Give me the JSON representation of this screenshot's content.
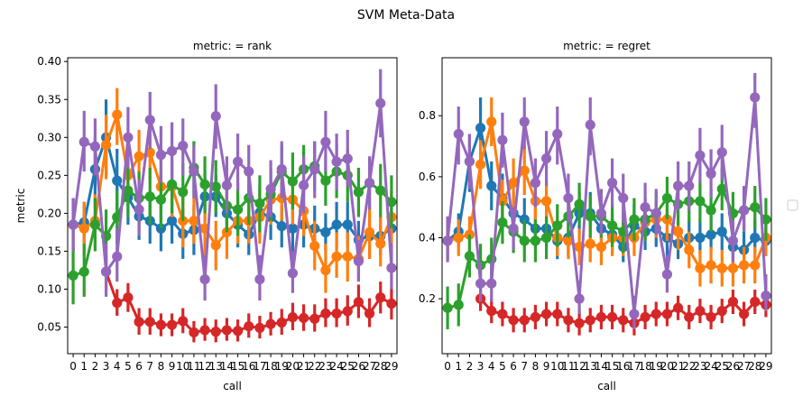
{
  "figure": {
    "title": "SVM Meta-Data"
  },
  "legend": {
    "entries": [],
    "placement": "center-right"
  },
  "chart_data": [
    {
      "type": "line",
      "title": "metric:  = rank",
      "xlabel": "call",
      "ylabel": "metric",
      "categories": [
        "0",
        "1",
        "2",
        "3",
        "4",
        "5",
        "6",
        "7",
        "8",
        "9",
        "10",
        "11",
        "12",
        "13",
        "14",
        "15",
        "16",
        "17",
        "18",
        "19",
        "20",
        "21",
        "22",
        "23",
        "24",
        "25",
        "26",
        "27",
        "28",
        "29"
      ],
      "ylim": [
        0.015,
        0.405
      ],
      "yticks": [
        0.05,
        0.1,
        0.15,
        0.2,
        0.25,
        0.3,
        0.35,
        0.4
      ],
      "ytick_labels": [
        "0.05",
        "0.10",
        "0.15",
        "0.20",
        "0.25",
        "0.30",
        "0.35",
        "0.40"
      ],
      "series": [
        {
          "color": "#1f77b4",
          "values": [
            0.185,
            0.188,
            0.258,
            0.3,
            0.243,
            0.221,
            0.196,
            0.19,
            0.18,
            0.19,
            0.173,
            0.178,
            0.222,
            0.222,
            0.2,
            0.185,
            0.172,
            0.201,
            0.195,
            0.183,
            0.18,
            0.185,
            0.18,
            0.175,
            0.185,
            0.185,
            0.165,
            0.17,
            0.17,
            0.18
          ],
          "lo": [
            0.15,
            0.16,
            0.21,
            0.25,
            0.205,
            0.185,
            0.165,
            0.16,
            0.15,
            0.16,
            0.14,
            0.145,
            0.19,
            0.195,
            0.17,
            0.155,
            0.145,
            0.17,
            0.165,
            0.155,
            0.15,
            0.155,
            0.15,
            0.15,
            0.155,
            0.155,
            0.14,
            0.14,
            0.145,
            0.15
          ],
          "hi": [
            0.22,
            0.215,
            0.3,
            0.35,
            0.285,
            0.26,
            0.23,
            0.22,
            0.21,
            0.225,
            0.205,
            0.21,
            0.255,
            0.25,
            0.23,
            0.215,
            0.2,
            0.235,
            0.225,
            0.21,
            0.21,
            0.215,
            0.21,
            0.2,
            0.215,
            0.215,
            0.19,
            0.2,
            0.195,
            0.21
          ]
        },
        {
          "color": "#ff7f0e",
          "values": [
            0.185,
            0.18,
            0.19,
            0.29,
            0.33,
            0.25,
            0.275,
            0.28,
            0.235,
            0.235,
            0.19,
            0.19,
            0.18,
            0.158,
            0.175,
            0.19,
            0.19,
            0.195,
            0.218,
            0.22,
            0.218,
            0.203,
            0.157,
            0.125,
            0.143,
            0.143,
            0.14,
            0.175,
            0.16,
            0.195
          ],
          "lo": [
            0.15,
            0.145,
            0.155,
            0.245,
            0.29,
            0.21,
            0.24,
            0.245,
            0.2,
            0.195,
            0.155,
            0.16,
            0.145,
            0.125,
            0.14,
            0.16,
            0.16,
            0.16,
            0.185,
            0.19,
            0.185,
            0.17,
            0.125,
            0.095,
            0.115,
            0.11,
            0.11,
            0.14,
            0.13,
            0.16
          ],
          "hi": [
            0.22,
            0.215,
            0.225,
            0.33,
            0.365,
            0.29,
            0.31,
            0.315,
            0.27,
            0.27,
            0.225,
            0.225,
            0.215,
            0.19,
            0.21,
            0.225,
            0.225,
            0.23,
            0.255,
            0.255,
            0.25,
            0.235,
            0.19,
            0.16,
            0.175,
            0.175,
            0.17,
            0.21,
            0.195,
            0.23
          ]
        },
        {
          "color": "#2ca02c",
          "values": [
            0.118,
            0.123,
            0.185,
            0.17,
            0.195,
            0.23,
            0.22,
            0.222,
            0.218,
            0.238,
            0.228,
            0.26,
            0.238,
            0.235,
            0.21,
            0.205,
            0.22,
            0.213,
            0.225,
            0.255,
            0.242,
            0.258,
            0.262,
            0.243,
            0.255,
            0.25,
            0.228,
            0.24,
            0.23,
            0.215
          ],
          "lo": [
            0.08,
            0.09,
            0.15,
            0.135,
            0.16,
            0.195,
            0.185,
            0.185,
            0.18,
            0.2,
            0.19,
            0.225,
            0.2,
            0.2,
            0.175,
            0.17,
            0.185,
            0.175,
            0.19,
            0.22,
            0.205,
            0.225,
            0.23,
            0.21,
            0.22,
            0.215,
            0.195,
            0.205,
            0.195,
            0.18
          ],
          "hi": [
            0.155,
            0.16,
            0.22,
            0.205,
            0.23,
            0.265,
            0.255,
            0.26,
            0.255,
            0.275,
            0.265,
            0.295,
            0.275,
            0.27,
            0.245,
            0.24,
            0.255,
            0.25,
            0.26,
            0.29,
            0.28,
            0.29,
            0.295,
            0.275,
            0.29,
            0.285,
            0.26,
            0.275,
            0.265,
            0.25
          ]
        },
        {
          "color": "#d62728",
          "values": [
            null,
            null,
            null,
            0.123,
            0.082,
            0.089,
            0.057,
            0.057,
            0.053,
            0.053,
            0.058,
            0.043,
            0.046,
            0.044,
            0.046,
            0.045,
            0.051,
            0.049,
            0.054,
            0.056,
            0.063,
            0.062,
            0.061,
            0.068,
            0.068,
            0.071,
            0.083,
            0.068,
            0.089,
            0.081
          ],
          "lo": [
            null,
            null,
            null,
            0.1,
            0.065,
            0.07,
            0.04,
            0.04,
            0.038,
            0.038,
            0.042,
            0.03,
            0.032,
            0.03,
            0.032,
            0.031,
            0.036,
            0.035,
            0.039,
            0.04,
            0.046,
            0.045,
            0.044,
            0.05,
            0.05,
            0.052,
            0.062,
            0.05,
            0.068,
            0.06
          ],
          "hi": [
            null,
            null,
            null,
            0.145,
            0.1,
            0.108,
            0.075,
            0.075,
            0.068,
            0.068,
            0.075,
            0.058,
            0.062,
            0.06,
            0.062,
            0.06,
            0.068,
            0.065,
            0.07,
            0.074,
            0.082,
            0.08,
            0.08,
            0.088,
            0.088,
            0.092,
            0.106,
            0.088,
            0.11,
            0.102
          ]
        },
        {
          "color": "#9467bd",
          "values": [
            0.185,
            0.294,
            0.288,
            0.123,
            0.143,
            0.3,
            0.205,
            0.323,
            0.277,
            0.282,
            0.289,
            0.255,
            0.113,
            0.328,
            0.237,
            0.268,
            0.255,
            0.113,
            0.232,
            0.258,
            0.121,
            0.237,
            0.258,
            0.294,
            0.268,
            0.272,
            0.137,
            0.24,
            0.345,
            0.128
          ],
          "lo": [
            0.15,
            0.255,
            0.25,
            0.09,
            0.11,
            0.26,
            0.17,
            0.285,
            0.24,
            0.245,
            0.25,
            0.22,
            0.085,
            0.285,
            0.2,
            0.23,
            0.22,
            0.085,
            0.195,
            0.22,
            0.095,
            0.2,
            0.22,
            0.255,
            0.23,
            0.235,
            0.11,
            0.205,
            0.3,
            0.1
          ],
          "hi": [
            0.22,
            0.335,
            0.325,
            0.16,
            0.18,
            0.34,
            0.245,
            0.36,
            0.315,
            0.32,
            0.325,
            0.29,
            0.145,
            0.37,
            0.275,
            0.305,
            0.29,
            0.145,
            0.27,
            0.295,
            0.15,
            0.275,
            0.295,
            0.335,
            0.305,
            0.31,
            0.165,
            0.275,
            0.39,
            0.16
          ]
        }
      ]
    },
    {
      "type": "line",
      "title": "metric:  = regret",
      "xlabel": "call",
      "ylabel": "",
      "categories": [
        "0",
        "1",
        "2",
        "3",
        "4",
        "5",
        "6",
        "7",
        "8",
        "9",
        "10",
        "11",
        "12",
        "13",
        "14",
        "15",
        "16",
        "17",
        "18",
        "19",
        "20",
        "21",
        "22",
        "23",
        "24",
        "25",
        "26",
        "27",
        "28",
        "29"
      ],
      "ylim": [
        0.02,
        0.99
      ],
      "yticks": [
        0.2,
        0.4,
        0.6,
        0.8
      ],
      "ytick_labels": [
        "0.2",
        "0.4",
        "0.6",
        "0.8"
      ],
      "series": [
        {
          "color": "#1f77b4",
          "values": [
            0.39,
            0.42,
            0.65,
            0.76,
            0.57,
            0.53,
            0.48,
            0.46,
            0.43,
            0.43,
            0.39,
            0.4,
            0.48,
            0.48,
            0.43,
            0.41,
            0.37,
            0.44,
            0.42,
            0.43,
            0.4,
            0.38,
            0.4,
            0.4,
            0.41,
            0.42,
            0.37,
            0.36,
            0.4,
            0.39
          ],
          "lo": [
            0.33,
            0.37,
            0.55,
            0.66,
            0.49,
            0.45,
            0.41,
            0.39,
            0.37,
            0.37,
            0.33,
            0.34,
            0.41,
            0.42,
            0.37,
            0.35,
            0.32,
            0.38,
            0.36,
            0.37,
            0.34,
            0.33,
            0.35,
            0.35,
            0.36,
            0.36,
            0.32,
            0.31,
            0.35,
            0.34
          ],
          "hi": [
            0.46,
            0.48,
            0.74,
            0.86,
            0.65,
            0.61,
            0.55,
            0.53,
            0.5,
            0.5,
            0.46,
            0.47,
            0.55,
            0.55,
            0.5,
            0.48,
            0.43,
            0.51,
            0.49,
            0.49,
            0.46,
            0.44,
            0.46,
            0.46,
            0.47,
            0.48,
            0.42,
            0.42,
            0.46,
            0.45
          ]
        },
        {
          "color": "#ff7f0e",
          "values": [
            0.39,
            0.4,
            0.41,
            0.64,
            0.78,
            0.52,
            0.58,
            0.62,
            0.52,
            0.52,
            0.4,
            0.39,
            0.37,
            0.38,
            0.37,
            0.4,
            0.4,
            0.4,
            0.45,
            0.46,
            0.46,
            0.42,
            0.36,
            0.3,
            0.31,
            0.3,
            0.3,
            0.31,
            0.31,
            0.4
          ],
          "lo": [
            0.33,
            0.34,
            0.35,
            0.56,
            0.7,
            0.45,
            0.5,
            0.54,
            0.45,
            0.45,
            0.34,
            0.33,
            0.31,
            0.32,
            0.31,
            0.34,
            0.34,
            0.34,
            0.39,
            0.4,
            0.39,
            0.36,
            0.3,
            0.24,
            0.25,
            0.24,
            0.24,
            0.25,
            0.25,
            0.34
          ],
          "hi": [
            0.45,
            0.46,
            0.47,
            0.72,
            0.86,
            0.59,
            0.66,
            0.7,
            0.59,
            0.59,
            0.46,
            0.45,
            0.43,
            0.44,
            0.43,
            0.46,
            0.46,
            0.46,
            0.51,
            0.52,
            0.53,
            0.48,
            0.42,
            0.36,
            0.37,
            0.36,
            0.36,
            0.37,
            0.37,
            0.46
          ]
        },
        {
          "color": "#2ca02c",
          "values": [
            0.17,
            0.18,
            0.34,
            0.31,
            0.33,
            0.45,
            0.42,
            0.39,
            0.39,
            0.4,
            0.44,
            0.47,
            0.51,
            0.47,
            0.47,
            0.44,
            0.42,
            0.46,
            0.46,
            0.48,
            0.53,
            0.51,
            0.52,
            0.52,
            0.49,
            0.56,
            0.48,
            0.49,
            0.5,
            0.46
          ],
          "lo": [
            0.1,
            0.11,
            0.27,
            0.24,
            0.26,
            0.38,
            0.35,
            0.32,
            0.32,
            0.33,
            0.37,
            0.4,
            0.44,
            0.4,
            0.4,
            0.37,
            0.35,
            0.39,
            0.39,
            0.41,
            0.46,
            0.44,
            0.45,
            0.45,
            0.42,
            0.49,
            0.41,
            0.42,
            0.43,
            0.39
          ],
          "hi": [
            0.24,
            0.25,
            0.41,
            0.38,
            0.4,
            0.52,
            0.49,
            0.46,
            0.46,
            0.47,
            0.51,
            0.54,
            0.58,
            0.54,
            0.54,
            0.51,
            0.49,
            0.53,
            0.53,
            0.55,
            0.6,
            0.58,
            0.59,
            0.59,
            0.56,
            0.63,
            0.55,
            0.56,
            0.57,
            0.53
          ]
        },
        {
          "color": "#d62728",
          "values": [
            null,
            null,
            null,
            0.2,
            0.16,
            0.15,
            0.13,
            0.13,
            0.14,
            0.15,
            0.15,
            0.13,
            0.12,
            0.13,
            0.14,
            0.14,
            0.13,
            0.12,
            0.14,
            0.15,
            0.15,
            0.17,
            0.14,
            0.16,
            0.14,
            0.16,
            0.19,
            0.15,
            0.19,
            0.18
          ],
          "lo": [
            null,
            null,
            null,
            0.16,
            0.12,
            0.11,
            0.09,
            0.09,
            0.1,
            0.11,
            0.11,
            0.09,
            0.08,
            0.09,
            0.1,
            0.1,
            0.09,
            0.08,
            0.1,
            0.11,
            0.11,
            0.13,
            0.1,
            0.12,
            0.1,
            0.12,
            0.15,
            0.11,
            0.15,
            0.14
          ],
          "hi": [
            null,
            null,
            null,
            0.24,
            0.2,
            0.19,
            0.17,
            0.17,
            0.18,
            0.19,
            0.19,
            0.17,
            0.16,
            0.17,
            0.18,
            0.18,
            0.17,
            0.16,
            0.18,
            0.19,
            0.19,
            0.21,
            0.18,
            0.2,
            0.18,
            0.2,
            0.23,
            0.19,
            0.23,
            0.22
          ]
        },
        {
          "color": "#9467bd",
          "values": [
            0.39,
            0.74,
            0.65,
            0.25,
            0.25,
            0.72,
            0.43,
            0.78,
            0.58,
            0.66,
            0.74,
            0.53,
            0.2,
            0.77,
            0.48,
            0.58,
            0.53,
            0.15,
            0.5,
            0.48,
            0.28,
            0.57,
            0.57,
            0.67,
            0.61,
            0.68,
            0.39,
            0.49,
            0.86,
            0.21
          ],
          "lo": [
            0.32,
            0.64,
            0.56,
            0.19,
            0.19,
            0.63,
            0.36,
            0.69,
            0.5,
            0.57,
            0.64,
            0.45,
            0.15,
            0.67,
            0.41,
            0.5,
            0.45,
            0.1,
            0.43,
            0.41,
            0.22,
            0.49,
            0.49,
            0.58,
            0.53,
            0.59,
            0.32,
            0.42,
            0.76,
            0.16
          ],
          "hi": [
            0.47,
            0.83,
            0.74,
            0.32,
            0.32,
            0.81,
            0.5,
            0.86,
            0.66,
            0.75,
            0.83,
            0.61,
            0.26,
            0.86,
            0.56,
            0.66,
            0.61,
            0.21,
            0.58,
            0.56,
            0.34,
            0.65,
            0.65,
            0.76,
            0.69,
            0.77,
            0.46,
            0.57,
            0.94,
            0.28
          ]
        }
      ]
    }
  ]
}
